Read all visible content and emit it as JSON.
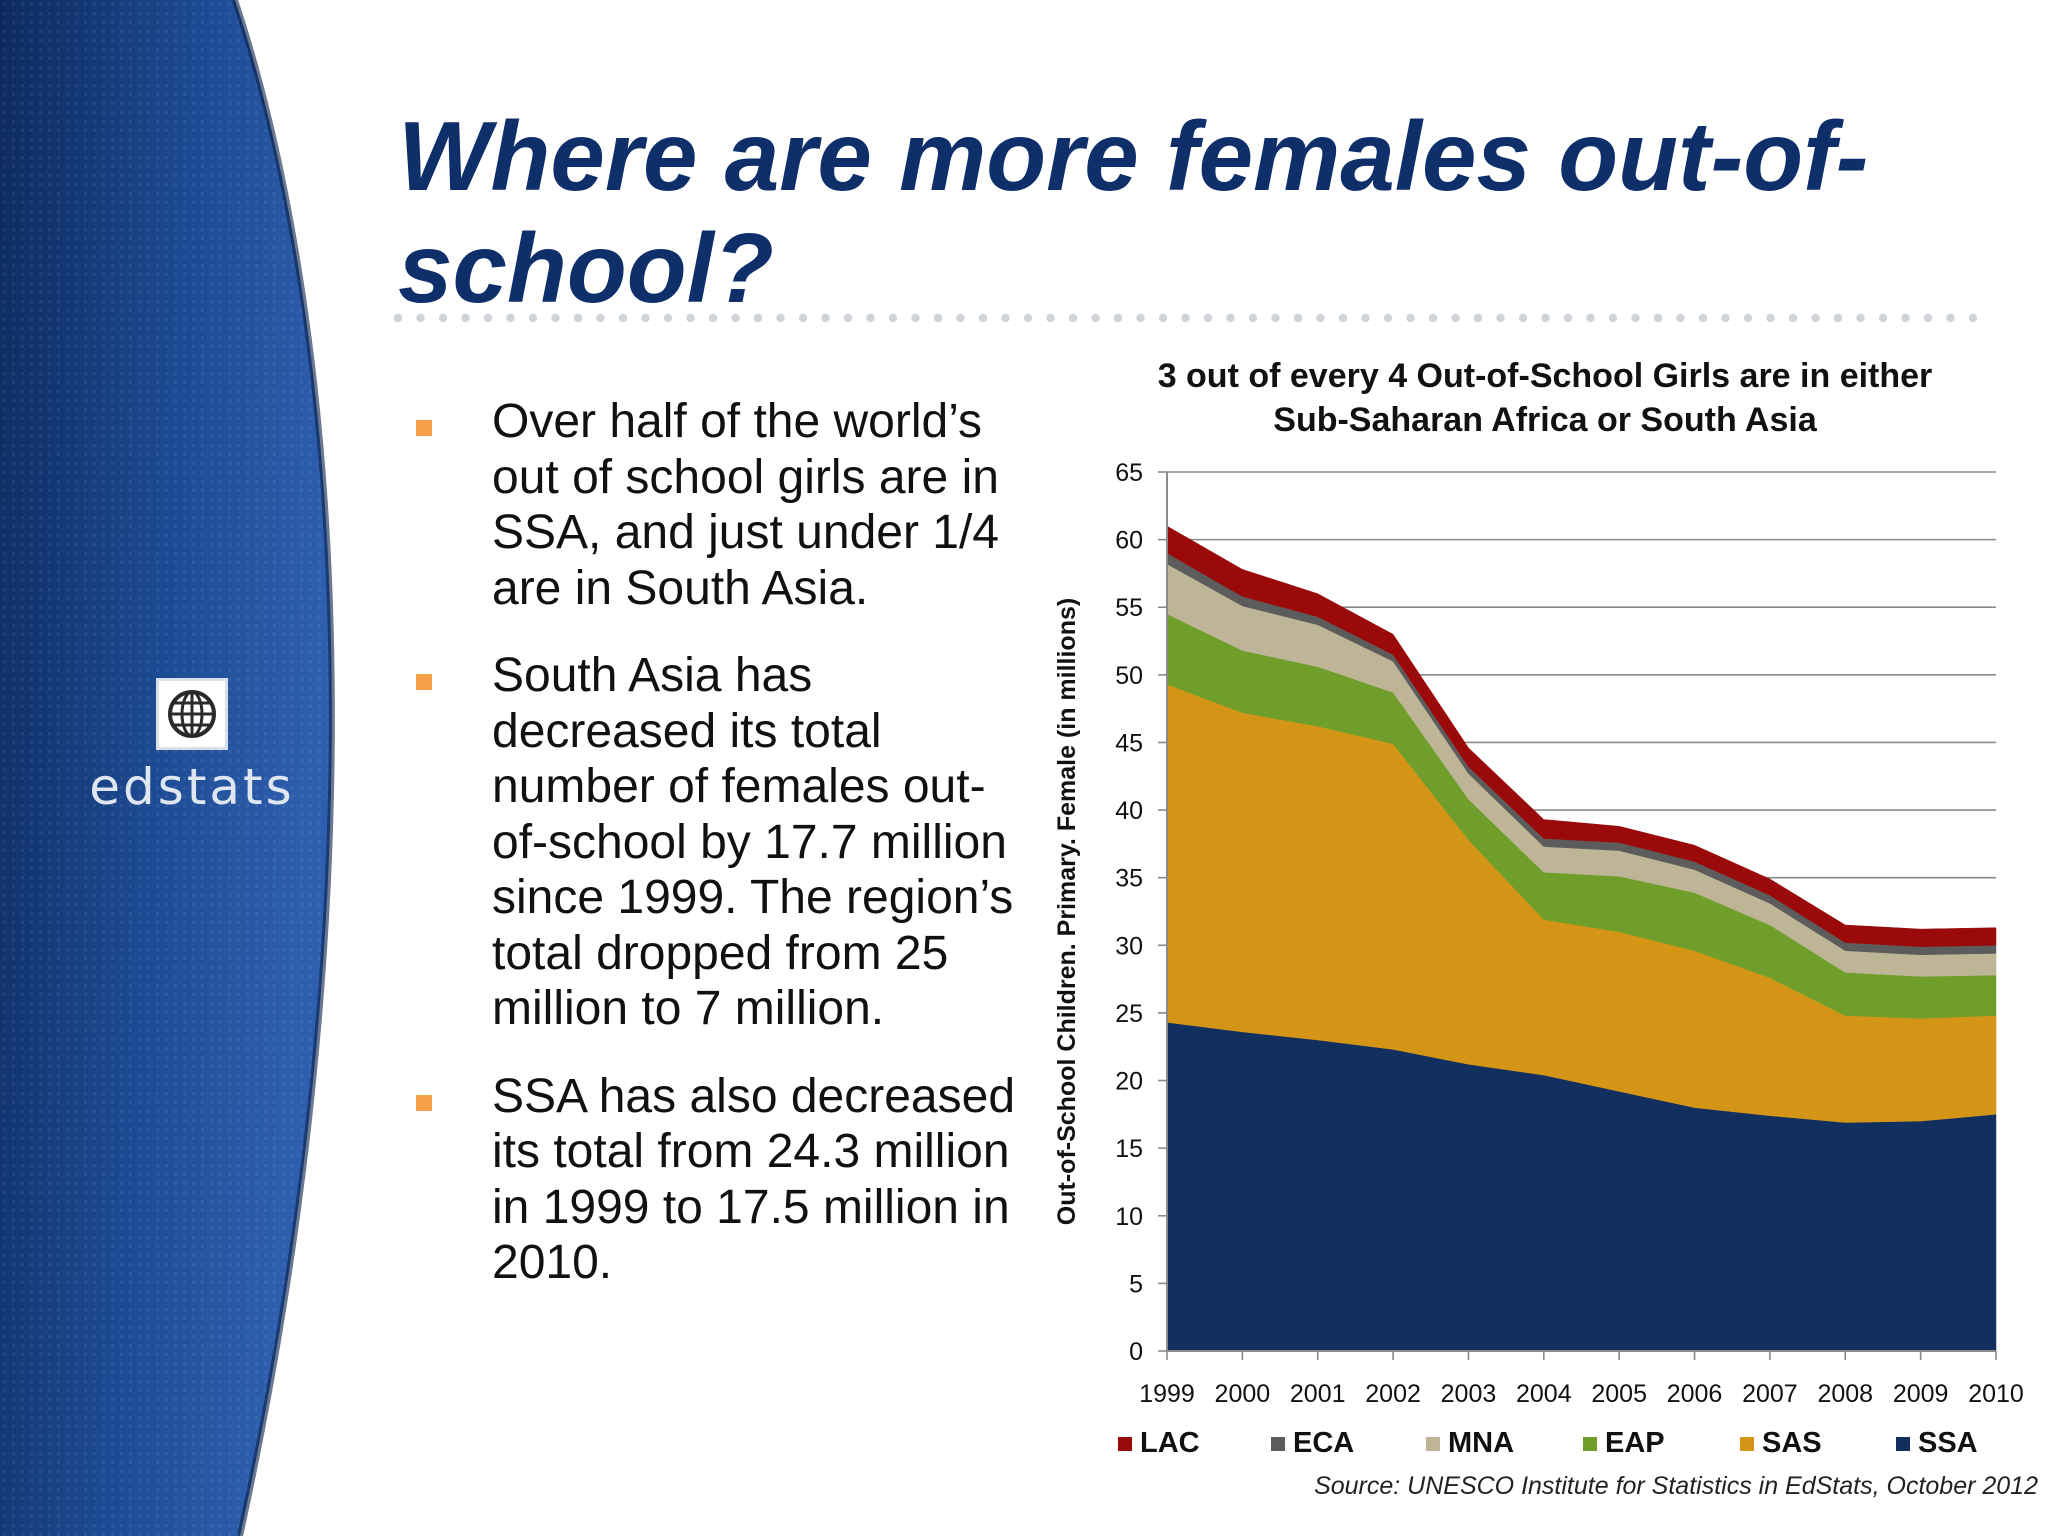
{
  "slide": {
    "title": "Where are more females out-of-school?",
    "logo_text": "edstats",
    "logo_icon": "globe-icon",
    "colors": {
      "title": "#0e2f6a",
      "bullet_marker": "#f5a048",
      "panel_dark": "#0d2a5e",
      "panel_light": "#2e5fae"
    },
    "bullets": [
      "Over half of the world’s out of school girls are in SSA, and just under 1/4 are in South Asia.",
      "South Asia has decreased its total number of females out-of-school by 17.7 million since 1999. The region’s total dropped from 25 million to 7 million.",
      "SSA has also decreased its total from 24.3 million in 1999 to 17.5 million in 2010."
    ],
    "source": "Source: UNESCO Institute for Statistics in EdStats, October 2012"
  },
  "chart_data": {
    "type": "area",
    "stacked": true,
    "title": "3 out of every 4 Out-of-School Girls are in either Sub-Saharan Africa or South Asia",
    "xlabel": "",
    "ylabel": "Out-of-School Children. Primary. Female (in millions)",
    "x": [
      "1999",
      "2000",
      "2001",
      "2002",
      "2003",
      "2004",
      "2005",
      "2006",
      "2007",
      "2008",
      "2009",
      "2010"
    ],
    "ylim": [
      0,
      65
    ],
    "yticks": [
      0,
      5,
      10,
      15,
      20,
      25,
      30,
      35,
      40,
      45,
      50,
      55,
      60,
      65
    ],
    "grid": true,
    "legend_position": "bottom",
    "series": [
      {
        "name": "SSA",
        "color": "#11305f",
        "values": [
          24.3,
          23.6,
          23.0,
          22.3,
          21.2,
          20.4,
          19.2,
          18.0,
          17.4,
          16.9,
          17.0,
          17.5
        ]
      },
      {
        "name": "SAS",
        "color": "#d49516",
        "values": [
          25.0,
          23.6,
          23.2,
          22.6,
          16.6,
          11.5,
          11.8,
          11.6,
          10.2,
          7.9,
          7.6,
          7.3
        ]
      },
      {
        "name": "EAP",
        "color": "#6f9e2b",
        "values": [
          5.2,
          4.6,
          4.4,
          3.8,
          3.0,
          3.5,
          4.1,
          4.3,
          3.9,
          3.2,
          3.1,
          3.0
        ]
      },
      {
        "name": "MNA",
        "color": "#bdb596",
        "values": [
          3.7,
          3.3,
          3.1,
          2.3,
          1.9,
          1.9,
          1.9,
          1.7,
          1.6,
          1.6,
          1.6,
          1.6
        ]
      },
      {
        "name": "ECA",
        "color": "#5c5c5c",
        "values": [
          0.8,
          0.7,
          0.6,
          0.5,
          0.5,
          0.6,
          0.6,
          0.6,
          0.6,
          0.6,
          0.6,
          0.6
        ]
      },
      {
        "name": "LAC",
        "color": "#9b0a0a",
        "values": [
          2.0,
          2.0,
          1.7,
          1.5,
          1.4,
          1.4,
          1.2,
          1.2,
          1.2,
          1.3,
          1.3,
          1.3
        ]
      }
    ],
    "legend_order": [
      "LAC",
      "ECA",
      "MNA",
      "EAP",
      "SAS",
      "SSA"
    ]
  }
}
